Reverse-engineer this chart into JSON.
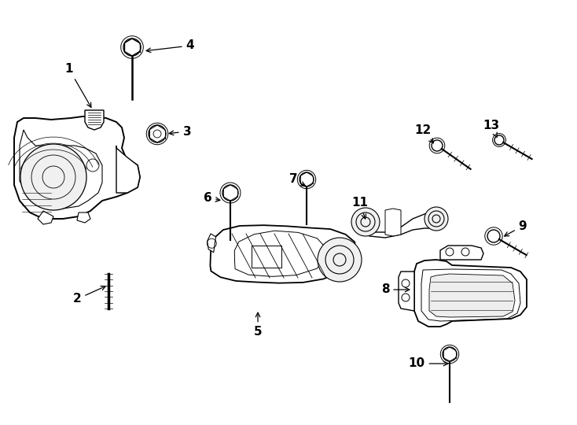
{
  "background_color": "#ffffff",
  "line_color": "#000000",
  "lw": 1.0,
  "fig_width": 7.34,
  "fig_height": 5.4,
  "dpi": 100
}
